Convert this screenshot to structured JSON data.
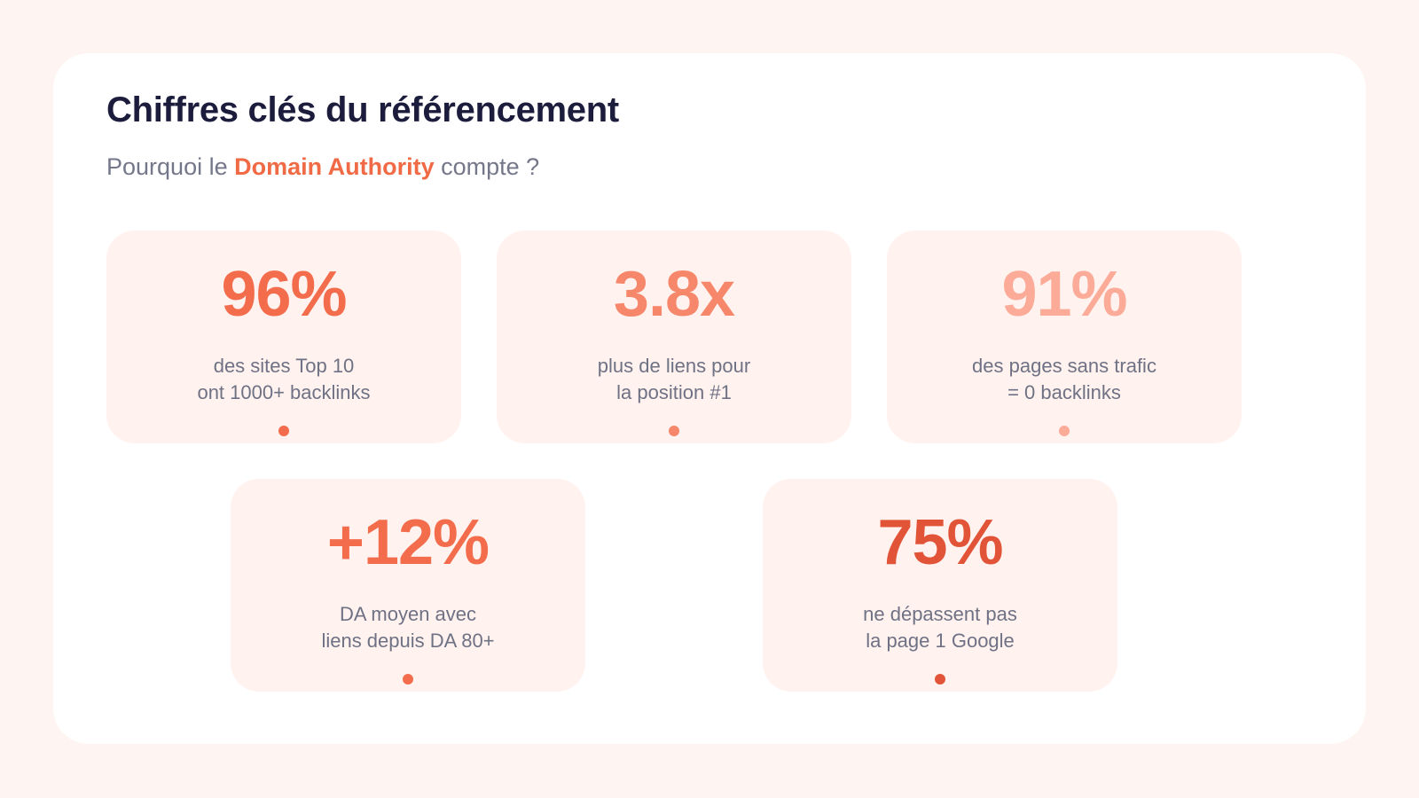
{
  "header": {
    "title": "Chiffres clés du référencement",
    "subtitle_prefix": "Pourquoi le ",
    "subtitle_highlight": "Domain Authority",
    "subtitle_suffix": " compte ?"
  },
  "colors": {
    "background": "#fef4f1",
    "panel": "#ffffff",
    "card": "#fff2ef",
    "title": "#1c1c3c",
    "muted_text": "#6f7184",
    "accent": "#f06a45"
  },
  "stats": [
    {
      "value": "96%",
      "line1": "des sites Top 10",
      "line2": "ont 1000+ backlinks",
      "color": "#f36d4d"
    },
    {
      "value": "3.8x",
      "line1": "plus de liens pour",
      "line2": "la position #1",
      "color": "#f7876a"
    },
    {
      "value": "91%",
      "line1": "des pages sans trafic",
      "line2": "= 0 backlinks",
      "color": "#fbab97"
    },
    {
      "value": "+12%",
      "line1": "DA moyen avec",
      "line2": "liens depuis DA 80+",
      "color": "#f36d4d"
    },
    {
      "value": "75%",
      "line1": "ne dépassent pas",
      "line2": "la page 1 Google",
      "color": "#e25438"
    }
  ]
}
